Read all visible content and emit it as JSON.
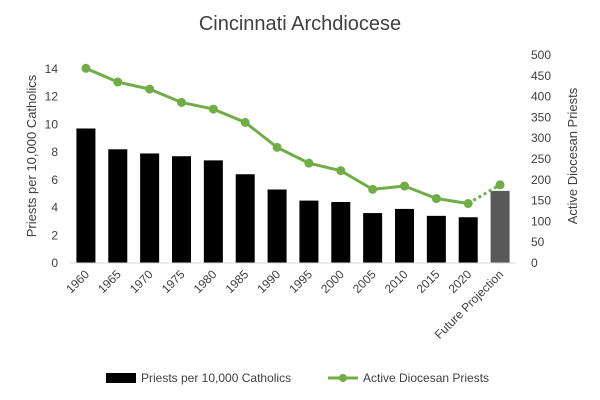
{
  "chart_data": {
    "type": "bar-line-combo",
    "title": "Cincinnati Archdiocese",
    "categories": [
      "1960",
      "1965",
      "1970",
      "1975",
      "1980",
      "1985",
      "1990",
      "1995",
      "2000",
      "2005",
      "2010",
      "2015",
      "2020",
      "Future Projection"
    ],
    "series": [
      {
        "name": "Priests per 10,000 Catholics",
        "type": "bar",
        "axis": "left",
        "color": "#000000",
        "projection_color": "#595959",
        "values": [
          9.7,
          8.2,
          7.9,
          7.7,
          7.4,
          6.4,
          5.3,
          4.5,
          4.4,
          3.6,
          3.9,
          3.4,
          3.3,
          5.2
        ]
      },
      {
        "name": "Active Diocesan Priests",
        "type": "line",
        "axis": "right",
        "color": "#70AD47",
        "values": [
          468,
          435,
          418,
          386,
          370,
          338,
          278,
          240,
          222,
          177,
          185,
          155,
          143,
          188
        ]
      }
    ],
    "ylabel": "Priests per 10,000 Catholics",
    "y2label": "Active Diocesan Priests",
    "ylim": [
      0,
      15
    ],
    "y_ticks": [
      "0",
      "2",
      "4",
      "6",
      "8",
      "10",
      "12",
      "14"
    ],
    "y2lim": [
      0,
      500
    ],
    "y2_ticks": [
      "0",
      "50",
      "100",
      "150",
      "200",
      "250",
      "300",
      "350",
      "400",
      "450",
      "500"
    ],
    "legend": [
      "Priests per 10,000 Catholics",
      "Active Diocesan Priests"
    ],
    "legend_position": "bottom",
    "grid": false
  }
}
